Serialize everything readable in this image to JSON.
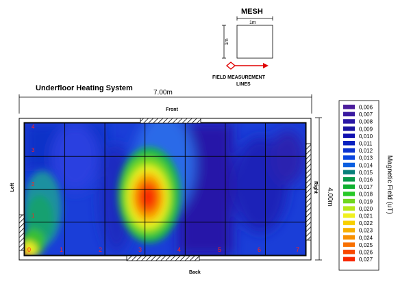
{
  "mesh": {
    "title": "MESH",
    "width_label": "1m",
    "height_label": "1m",
    "lines_label_1": "FIELD MEASUREMENT",
    "lines_label_2": "LINES"
  },
  "diagram": {
    "title": "Underfloor Heating System",
    "width_label": "7.00m",
    "height_label": "4.00m",
    "front_label": "Front",
    "back_label": "Back",
    "left_label": "Left",
    "right_label": "Right",
    "column_numbers": [
      "0",
      "1",
      "2",
      "3",
      "4",
      "5",
      "6",
      "7"
    ],
    "row_numbers": [
      "4",
      "3",
      "2",
      "1"
    ]
  },
  "legend": {
    "title": "Magnetic Field (uT)",
    "entries": [
      {
        "value": "0,006",
        "color": "#4b1c9c"
      },
      {
        "value": "0,007",
        "color": "#3a1aa0"
      },
      {
        "value": "0,008",
        "color": "#2a18a6"
      },
      {
        "value": "0,009",
        "color": "#1a14a0"
      },
      {
        "value": "0,010",
        "color": "#1010b0"
      },
      {
        "value": "0,011",
        "color": "#0a22c0"
      },
      {
        "value": "0,012",
        "color": "#0a32d0"
      },
      {
        "value": "0,013",
        "color": "#0a46e0"
      },
      {
        "value": "0,014",
        "color": "#0a5ee0"
      },
      {
        "value": "0,015",
        "color": "#08807a"
      },
      {
        "value": "0,016",
        "color": "#0a9a4a"
      },
      {
        "value": "0,017",
        "color": "#10b030"
      },
      {
        "value": "0,018",
        "color": "#28c828"
      },
      {
        "value": "0,019",
        "color": "#70d820"
      },
      {
        "value": "0,020",
        "color": "#b8e818"
      },
      {
        "value": "0,021",
        "color": "#f0f020"
      },
      {
        "value": "0,022",
        "color": "#f8d000"
      },
      {
        "value": "0,023",
        "color": "#f8b000"
      },
      {
        "value": "0,024",
        "color": "#f89000"
      },
      {
        "value": "0,025",
        "color": "#f87000"
      },
      {
        "value": "0,026",
        "color": "#f84800"
      },
      {
        "value": "0,027",
        "color": "#f82800"
      }
    ]
  }
}
